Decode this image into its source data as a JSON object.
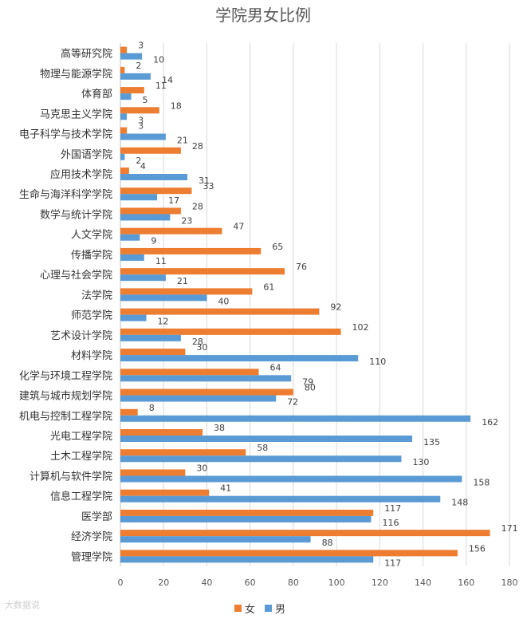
{
  "chart_data": {
    "type": "bar",
    "orientation": "horizontal",
    "title": "学院男女比例",
    "categories": [
      "高等研究院",
      "物理与能源学院",
      "体育部",
      "马克思主义学院",
      "电子科学与技术学院",
      "外国语学院",
      "应用技术学院",
      "生命与海洋科学学院",
      "数学与统计学院",
      "人文学院",
      "传播学院",
      "心理与社会学院",
      "法学院",
      "师范学院",
      "艺术设计学院",
      "材料学院",
      "化学与环境工程学院",
      "建筑与城市规划学院",
      "机电与控制工程学院",
      "光电工程学院",
      "土木工程学院",
      "计算机与软件学院",
      "信息工程学院",
      "医学部",
      "经济学院",
      "管理学院"
    ],
    "series": [
      {
        "name": "女",
        "color": "#ED7D31",
        "values": [
          3,
          2,
          11,
          18,
          3,
          28,
          4,
          33,
          28,
          47,
          65,
          76,
          61,
          92,
          102,
          30,
          64,
          80,
          8,
          38,
          58,
          30,
          41,
          117,
          171,
          156
        ]
      },
      {
        "name": "男",
        "color": "#5B9BD5",
        "values": [
          10,
          14,
          5,
          3,
          21,
          2,
          31,
          17,
          23,
          9,
          11,
          21,
          40,
          12,
          28,
          110,
          79,
          72,
          162,
          135,
          130,
          158,
          148,
          116,
          88,
          117
        ]
      }
    ],
    "xlim": [
      0,
      180
    ],
    "xticks": [
      0,
      20,
      40,
      60,
      80,
      100,
      120,
      140,
      160,
      180
    ],
    "grid": true,
    "legend_position": "bottom"
  },
  "watermark": "大数据说"
}
